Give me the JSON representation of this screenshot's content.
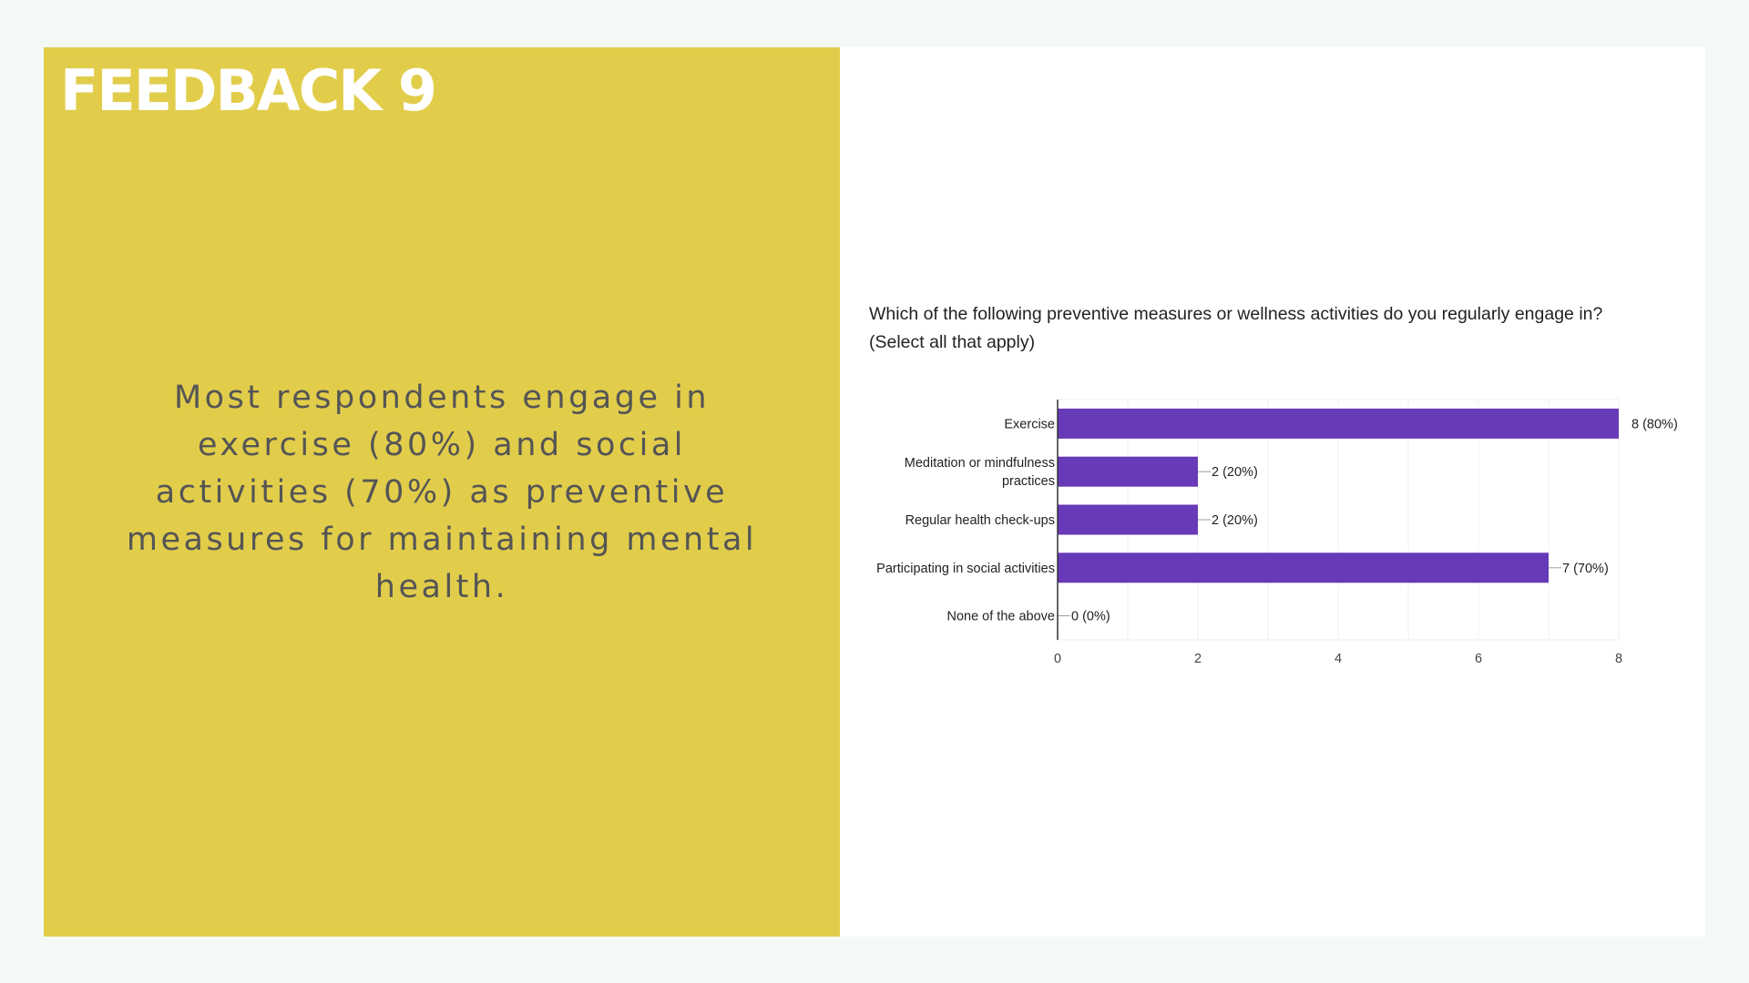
{
  "slide": {
    "heading": "FEEDBACK 9",
    "summary": "Most respondents engage in exercise (80%) and social activities (70%) as preventive measures for maintaining mental health."
  },
  "colors": {
    "left_panel": "#e2cd4b",
    "bar": "#673ab7",
    "heading_text": "#ffffff",
    "summary_text": "#555555"
  },
  "chart_data": {
    "type": "bar",
    "orientation": "horizontal",
    "title_lines": [
      "Which of the following preventive measures or wellness activities do you regularly engage in?",
      "(Select all that apply)"
    ],
    "categories": [
      [
        "Exercise"
      ],
      [
        "Meditation or mindfulness",
        "practices"
      ],
      [
        "Regular health check-ups"
      ],
      [
        "Participating in social activities"
      ],
      [
        "None of the above"
      ]
    ],
    "values": [
      8,
      2,
      2,
      7,
      0
    ],
    "data_labels": [
      "8 (80%)",
      "2 (20%)",
      "2 (20%)",
      "7 (70%)",
      "0 (0%)"
    ],
    "xlim": [
      0,
      8
    ],
    "x_ticks": [
      0,
      2,
      4,
      6,
      8
    ],
    "grid": true,
    "legend": "none"
  }
}
